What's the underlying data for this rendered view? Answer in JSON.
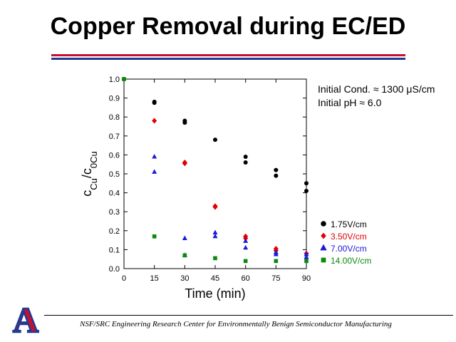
{
  "slide": {
    "title": "Copper Removal during EC/ED",
    "note_line1": "Initial Cond. ≈ 1300 μS/cm",
    "note_line2": "Initial pH ≈ 6.0",
    "footer": "NSF/SRC Engineering Research Center for Environmentally Benign Semiconductor Manufacturing",
    "logo_letter": "A",
    "colors": {
      "rule_red": "#c8102e",
      "rule_blue": "#1f3a93",
      "logo_red": "#c8102e",
      "logo_blue": "#1f3a93"
    }
  },
  "chart_data": {
    "type": "scatter",
    "xlabel": "Time (min)",
    "ylabel": "cCu/c0Cu",
    "xlim": [
      0,
      90
    ],
    "ylim": [
      0,
      1.0
    ],
    "xticks": [
      0,
      15,
      30,
      45,
      60,
      75,
      90
    ],
    "yticks": [
      0.0,
      0.1,
      0.2,
      0.3,
      0.4,
      0.5,
      0.6,
      0.7,
      0.8,
      0.9,
      1.0
    ],
    "grid": false,
    "legend_position": "bottom-right",
    "series": [
      {
        "name": "1.75V/cm",
        "marker": "circle",
        "color": "#000000",
        "points": [
          [
            0,
            1.0
          ],
          [
            15,
            0.88
          ],
          [
            15,
            0.875
          ],
          [
            30,
            0.78
          ],
          [
            30,
            0.77
          ],
          [
            45,
            0.68
          ],
          [
            60,
            0.59
          ],
          [
            60,
            0.56
          ],
          [
            75,
            0.52
          ],
          [
            75,
            0.49
          ],
          [
            90,
            0.45
          ],
          [
            90,
            0.41
          ]
        ]
      },
      {
        "name": "3.50V/cm",
        "marker": "diamond",
        "color": "#e00000",
        "points": [
          [
            15,
            0.78
          ],
          [
            30,
            0.56
          ],
          [
            30,
            0.555
          ],
          [
            45,
            0.33
          ],
          [
            45,
            0.325
          ],
          [
            60,
            0.17
          ],
          [
            60,
            0.16
          ],
          [
            75,
            0.105
          ],
          [
            75,
            0.095
          ],
          [
            90,
            0.08
          ]
        ]
      },
      {
        "name": "7.00V/cm",
        "marker": "triangle",
        "color": "#1a1adc",
        "points": [
          [
            15,
            0.59
          ],
          [
            15,
            0.51
          ],
          [
            30,
            0.16
          ],
          [
            30,
            0.07
          ],
          [
            45,
            0.19
          ],
          [
            45,
            0.17
          ],
          [
            60,
            0.145
          ],
          [
            60,
            0.11
          ],
          [
            75,
            0.085
          ],
          [
            75,
            0.075
          ],
          [
            90,
            0.075
          ],
          [
            90,
            0.06
          ]
        ]
      },
      {
        "name": "14.00V/cm",
        "marker": "square",
        "color": "#0a8a0a",
        "points": [
          [
            0,
            1.0
          ],
          [
            15,
            0.17
          ],
          [
            30,
            0.07
          ],
          [
            45,
            0.055
          ],
          [
            60,
            0.04
          ],
          [
            75,
            0.04
          ],
          [
            90,
            0.04
          ]
        ]
      }
    ]
  }
}
